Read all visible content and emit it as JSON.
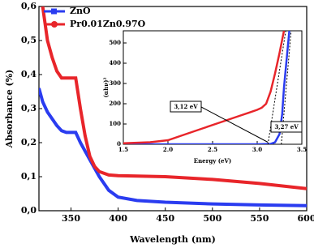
{
  "chart_data": [
    {
      "type": "line",
      "x_label": "Wavelength (nm)",
      "y_label": "Absorbance (%)",
      "xlim": [
        316,
        600
      ],
      "xticks": [
        350,
        400,
        450,
        500,
        550,
        600
      ],
      "ylim": [
        0,
        0.6
      ],
      "yticks": [
        {
          "value": 0,
          "label": "0,0"
        },
        {
          "value": 0.1,
          "label": "0,1"
        },
        {
          "value": 0.2,
          "label": "0,2"
        },
        {
          "value": 0.3,
          "label": "0,3"
        },
        {
          "value": 0.4,
          "label": "0,4"
        },
        {
          "value": 0.5,
          "label": "0,5"
        },
        {
          "value": 0.6,
          "label": "0,6"
        }
      ],
      "legend": "upper-left",
      "series": [
        {
          "name": "ZnO",
          "color": "#2a3cf0",
          "x": [
            316,
            320,
            325,
            330,
            335,
            340,
            345,
            350,
            355,
            360,
            370,
            380,
            390,
            400,
            420,
            450,
            500,
            550,
            600
          ],
          "values": [
            0.36,
            0.32,
            0.29,
            0.27,
            0.25,
            0.235,
            0.23,
            0.23,
            0.23,
            0.2,
            0.15,
            0.1,
            0.06,
            0.04,
            0.03,
            0.025,
            0.02,
            0.017,
            0.015
          ]
        },
        {
          "name": "Pr0.01Zn0.97O",
          "color": "#e8252a",
          "x": [
            320,
            325,
            330,
            335,
            340,
            345,
            350,
            355,
            360,
            365,
            370,
            375,
            380,
            390,
            400,
            450,
            500,
            550,
            600
          ],
          "values": [
            0.6,
            0.5,
            0.45,
            0.41,
            0.39,
            0.39,
            0.39,
            0.39,
            0.3,
            0.22,
            0.16,
            0.13,
            0.115,
            0.105,
            0.103,
            0.1,
            0.092,
            0.08,
            0.065
          ]
        }
      ]
    },
    {
      "type": "line",
      "x_label": "Energy (eV)",
      "y_label": "(αhν)²",
      "xlim": [
        1.5,
        3.5
      ],
      "xticks": [
        {
          "value": 1.5,
          "label": "1.5"
        },
        {
          "value": 2,
          "label": "2.0"
        },
        {
          "value": 2.5,
          "label": "2.5"
        },
        {
          "value": 3,
          "label": "3.0"
        },
        {
          "value": 3.5,
          "label": "3.5"
        }
      ],
      "ylim": [
        0,
        560
      ],
      "yticks": [
        0,
        100,
        200,
        300,
        400,
        500
      ],
      "annotations": [
        "3,12 eV",
        "3,27 eV"
      ],
      "series": [
        {
          "color": "#2a3cf0",
          "x": [
            1.5,
            2.5,
            3.0,
            3.15,
            3.2,
            3.25,
            3.28,
            3.3,
            3.33,
            3.36
          ],
          "values": [
            0,
            0,
            0,
            2,
            10,
            50,
            150,
            280,
            420,
            560
          ]
        },
        {
          "color": "#e8252a",
          "x": [
            1.5,
            1.8,
            2.0,
            2.2,
            2.4,
            2.6,
            2.8,
            2.9,
            3.0,
            3.05,
            3.1,
            3.15,
            3.2,
            3.25,
            3.3
          ],
          "values": [
            5,
            10,
            20,
            50,
            80,
            110,
            140,
            155,
            170,
            180,
            200,
            260,
            350,
            450,
            560
          ]
        }
      ]
    }
  ]
}
